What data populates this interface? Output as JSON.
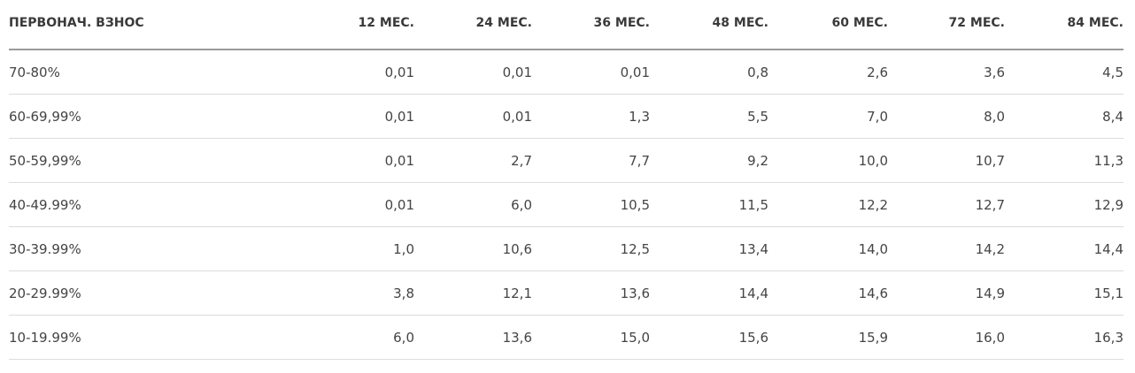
{
  "table": {
    "headers": [
      "ПЕРВОНАЧ. ВЗНОС",
      "12 МЕС.",
      "24 МЕС.",
      "36 МЕС.",
      "48 МЕС.",
      "60 МЕС.",
      "72 МЕС.",
      "84 МЕС."
    ],
    "rows": [
      [
        "70-80%",
        "0,01",
        "0,01",
        "0,01",
        "0,8",
        "2,6",
        "3,6",
        "4,5"
      ],
      [
        "60-69,99%",
        "0,01",
        "0,01",
        "1,3",
        "5,5",
        "7,0",
        "8,0",
        "8,4"
      ],
      [
        "50-59,99%",
        "0,01",
        "2,7",
        "7,7",
        "9,2",
        "10,0",
        "10,7",
        "11,3"
      ],
      [
        "40-49.99%",
        "0,01",
        "6,0",
        "10,5",
        "11,5",
        "12,2",
        "12,7",
        "12,9"
      ],
      [
        "30-39.99%",
        "1,0",
        "10,6",
        "12,5",
        "13,4",
        "14,0",
        "14,2",
        "14,4"
      ],
      [
        "20-29.99%",
        "3,8",
        "12,1",
        "13,6",
        "14,4",
        "14,6",
        "14,9",
        "15,1"
      ],
      [
        "10-19.99%",
        "6,0",
        "13,6",
        "15,0",
        "15,6",
        "15,9",
        "16,0",
        "16,3"
      ]
    ]
  }
}
